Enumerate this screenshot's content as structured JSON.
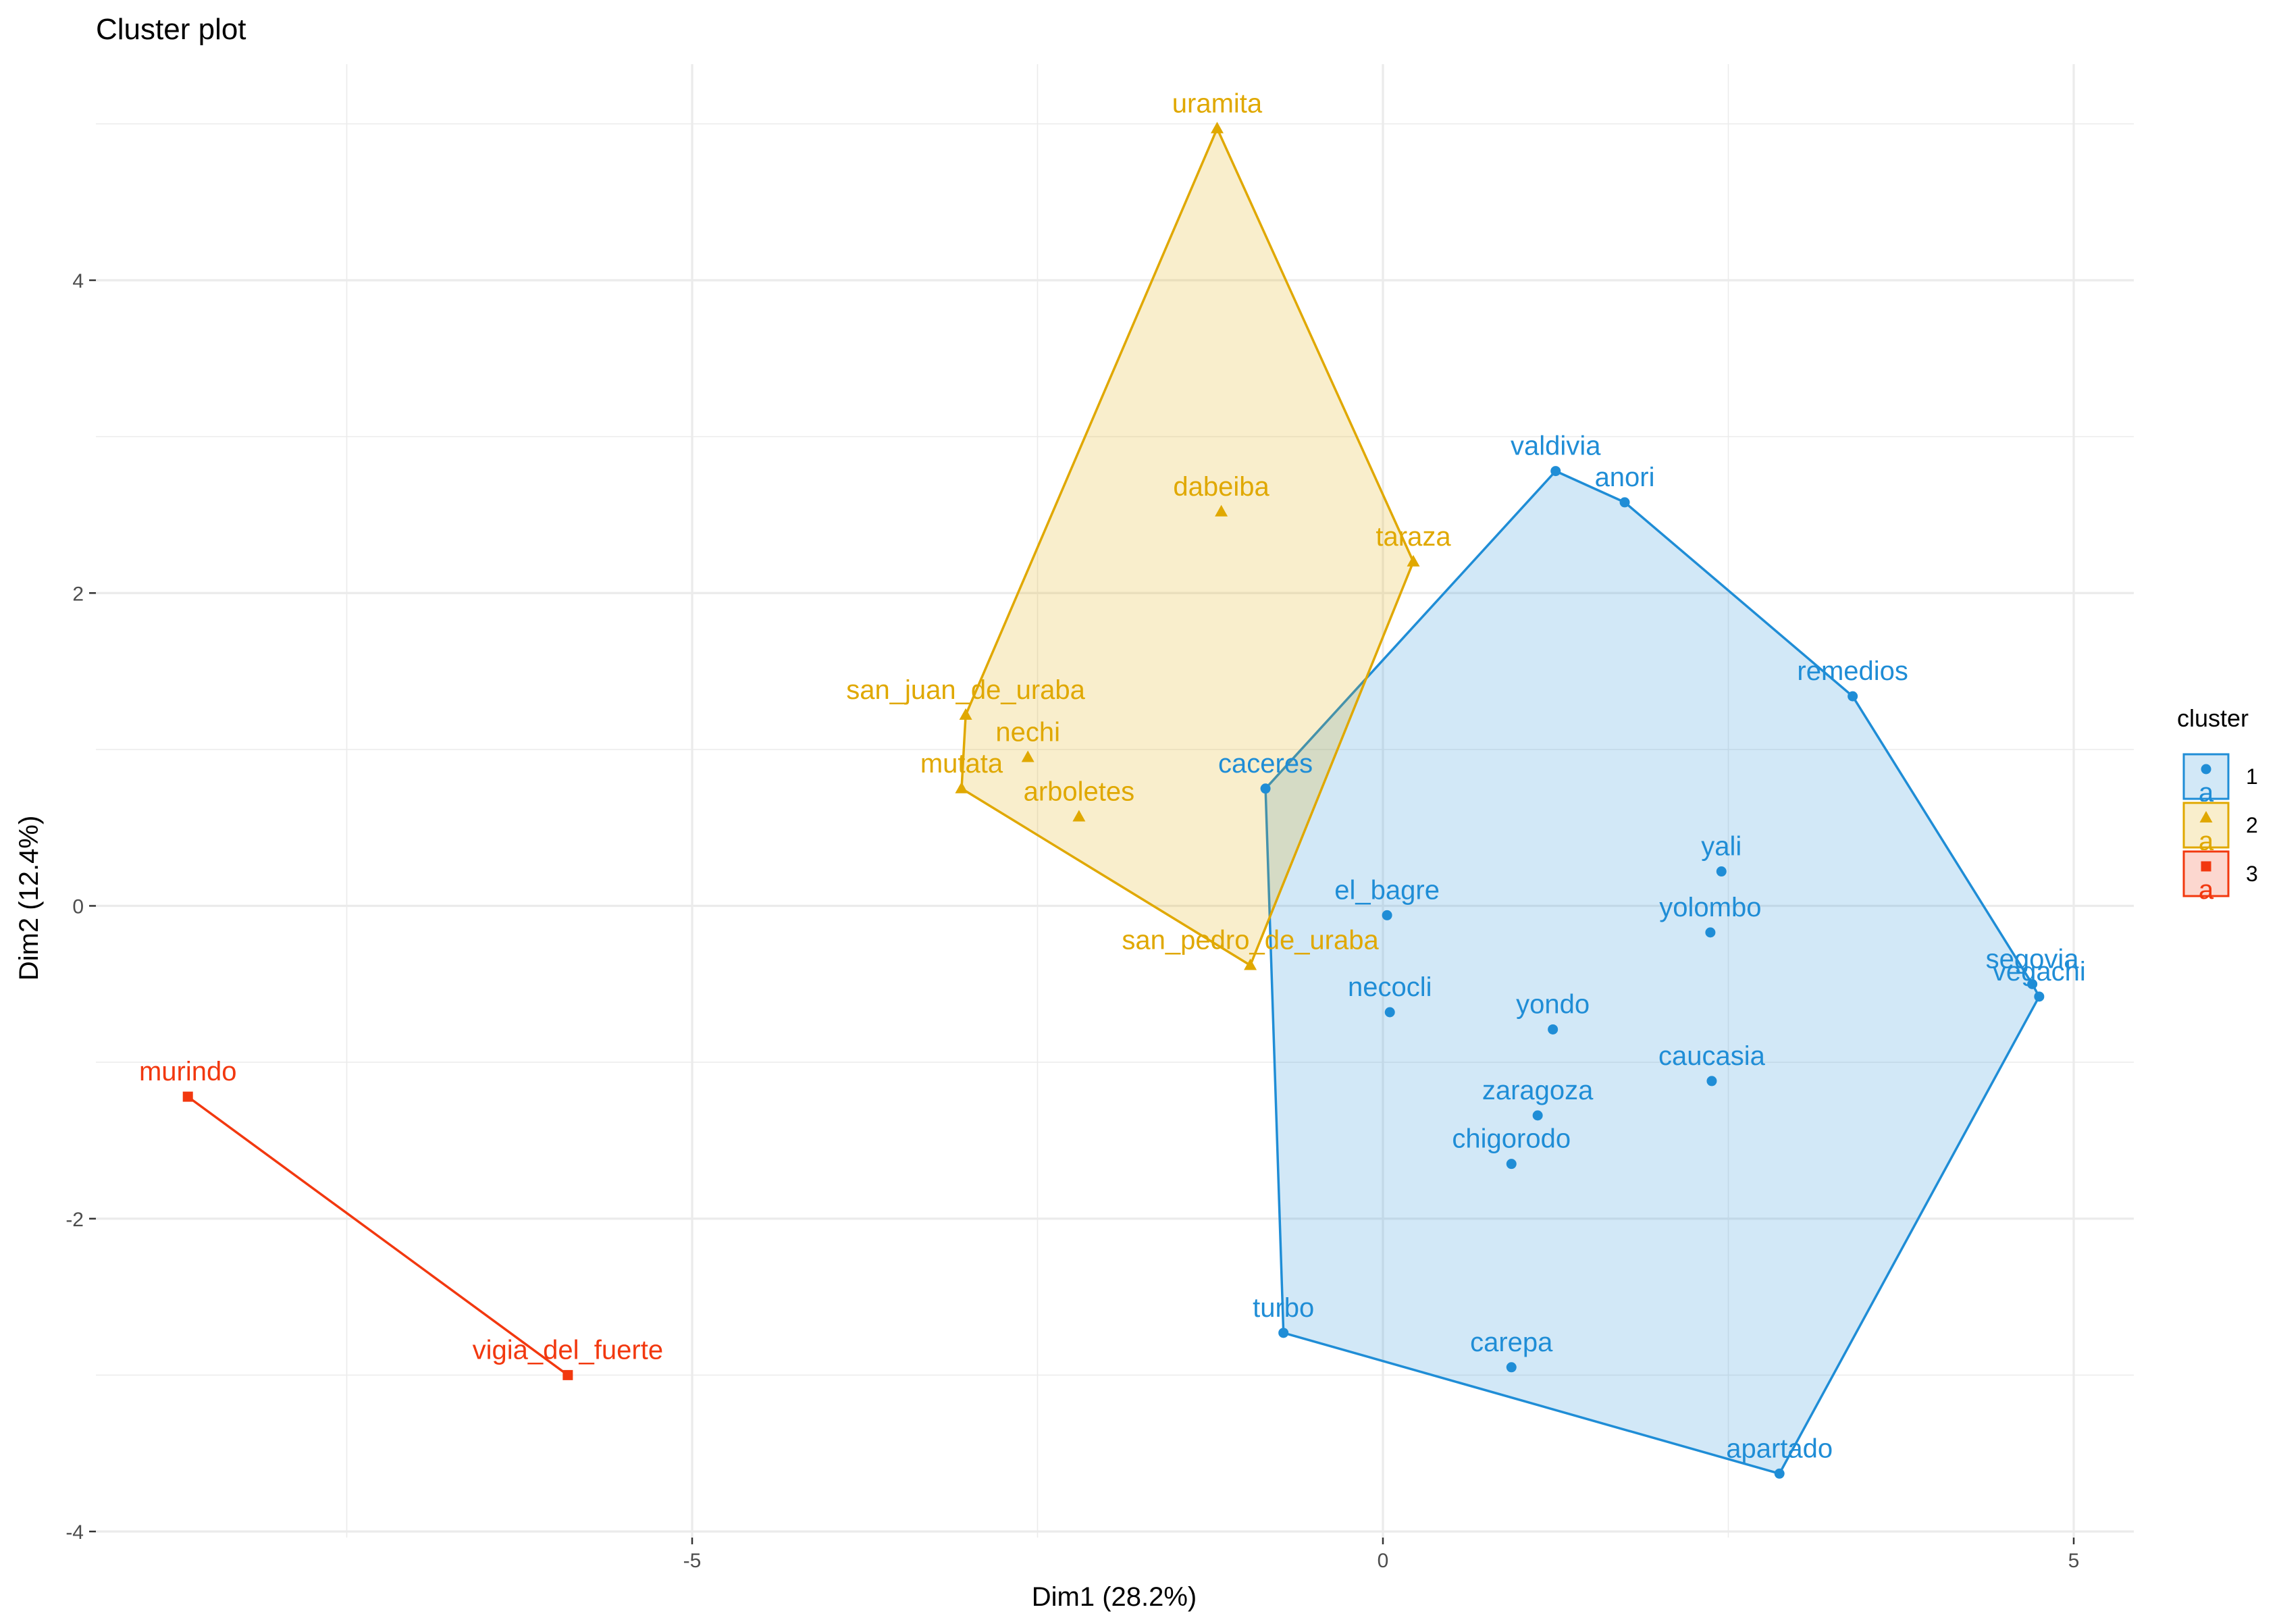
{
  "chart_data": {
    "type": "scatter",
    "title": "Cluster plot",
    "xlabel": "Dim1 (28.2%)",
    "ylabel": "Dim2 (12.4%)",
    "xlim": [
      -9.3,
      5.4
    ],
    "ylim": [
      -4.05,
      5.4
    ],
    "x_ticks": [
      -5,
      0,
      5
    ],
    "x_tick_labels": [
      "-5",
      "0",
      "5"
    ],
    "y_ticks": [
      -4,
      -2,
      0,
      2,
      4
    ],
    "y_tick_labels": [
      "-4",
      "-2",
      "0",
      "2",
      "4"
    ],
    "grid": true,
    "legend": {
      "title": "cluster",
      "position": "right",
      "entries": [
        "1",
        "2",
        "3"
      ],
      "key_letter": "a"
    },
    "colors": {
      "1": "#1f8dd6",
      "2": "#e0a800",
      "3": "#f2380f",
      "grid": "#ebebeb",
      "axis_text": "#4d4d4d"
    },
    "series": [
      {
        "name": "1",
        "marker": "circle",
        "points": [
          {
            "label": "valdivia",
            "x": 1.25,
            "y": 2.78
          },
          {
            "label": "anori",
            "x": 1.75,
            "y": 2.58
          },
          {
            "label": "remedios",
            "x": 3.4,
            "y": 1.34
          },
          {
            "label": "caceres",
            "x": -0.85,
            "y": 0.75
          },
          {
            "label": "yali",
            "x": 2.45,
            "y": 0.22
          },
          {
            "label": "el_bagre",
            "x": 0.03,
            "y": -0.06
          },
          {
            "label": "yolombo",
            "x": 2.37,
            "y": -0.17
          },
          {
            "label": "segovia",
            "x": 4.7,
            "y": -0.5
          },
          {
            "label": "vegachi",
            "x": 4.75,
            "y": -0.58
          },
          {
            "label": "necocli",
            "x": 0.05,
            "y": -0.68
          },
          {
            "label": "yondo",
            "x": 1.23,
            "y": -0.79
          },
          {
            "label": "caucasia",
            "x": 2.38,
            "y": -1.12
          },
          {
            "label": "zaragoza",
            "x": 1.12,
            "y": -1.34
          },
          {
            "label": "chigorodo",
            "x": 0.93,
            "y": -1.65
          },
          {
            "label": "turbo",
            "x": -0.72,
            "y": -2.73
          },
          {
            "label": "carepa",
            "x": 0.93,
            "y": -2.95
          },
          {
            "label": "apartado",
            "x": 2.87,
            "y": -3.63
          }
        ],
        "hull": [
          "valdivia",
          "anori",
          "remedios",
          "segovia",
          "vegachi",
          "apartado",
          "turbo",
          "caceres"
        ]
      },
      {
        "name": "2",
        "marker": "triangle",
        "points": [
          {
            "label": "uramita",
            "x": -1.2,
            "y": 4.97
          },
          {
            "label": "dabeiba",
            "x": -1.17,
            "y": 2.52
          },
          {
            "label": "taraza",
            "x": 0.22,
            "y": 2.2
          },
          {
            "label": "san_juan_de_uraba",
            "x": -3.02,
            "y": 1.22
          },
          {
            "label": "nechi",
            "x": -2.57,
            "y": 0.95
          },
          {
            "label": "mutata",
            "x": -3.05,
            "y": 0.75
          },
          {
            "label": "arboletes",
            "x": -2.2,
            "y": 0.57
          },
          {
            "label": "san_pedro_de_uraba",
            "x": -0.96,
            "y": -0.38
          }
        ],
        "hull": [
          "uramita",
          "taraza",
          "san_pedro_de_uraba",
          "mutata",
          "san_juan_de_uraba"
        ]
      },
      {
        "name": "3",
        "marker": "square",
        "points": [
          {
            "label": "murindo",
            "x": -8.65,
            "y": -1.22
          },
          {
            "label": "vigia_del_fuerte",
            "x": -5.9,
            "y": -3.0
          }
        ],
        "hull": [
          "murindo",
          "vigia_del_fuerte"
        ]
      }
    ]
  }
}
